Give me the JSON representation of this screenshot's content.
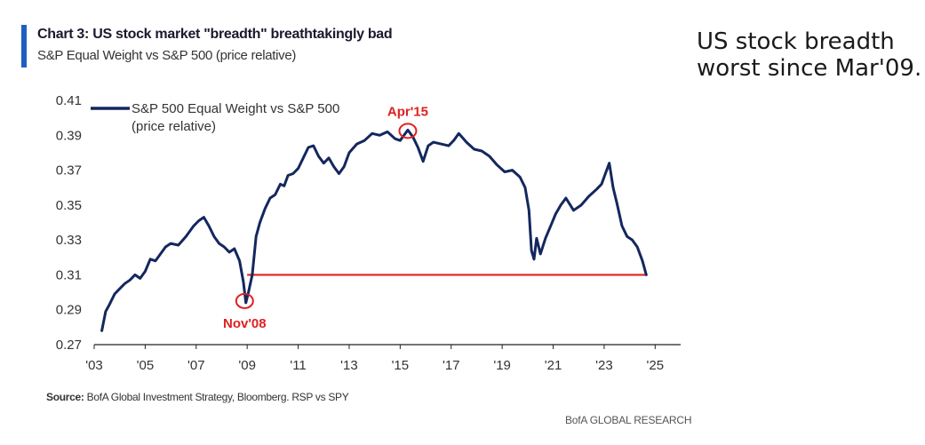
{
  "header": {
    "title": "Chart 3: US stock market \"breadth\" breathtakingly bad",
    "subtitle": "S&P Equal Weight vs S&P 500 (price relative)"
  },
  "side_note": "US stock breadth\nworst since Mar'09.",
  "footer": {
    "source_label": "Source:",
    "source_text": " BofA Global Investment Strategy, Bloomberg. RSP vs SPY",
    "brand": "BofA GLOBAL RESEARCH"
  },
  "colors": {
    "series": "#14275e",
    "annotation": "#e02020",
    "accent": "#1f5fbf",
    "axis": "#222222"
  },
  "chart_data": {
    "type": "line",
    "title": "Chart 3: US stock market \"breadth\" breathtakingly bad",
    "subtitle": "S&P Equal Weight vs S&P 500 (price relative)",
    "xlabel": "",
    "ylabel": "",
    "xlim": [
      2003,
      2026
    ],
    "ylim": [
      0.27,
      0.41
    ],
    "grid": false,
    "legend_position": "top-left",
    "x_ticks": [
      {
        "value": 2003,
        "label": "'03"
      },
      {
        "value": 2005,
        "label": "'05"
      },
      {
        "value": 2007,
        "label": "'07"
      },
      {
        "value": 2009,
        "label": "'09"
      },
      {
        "value": 2011,
        "label": "'11"
      },
      {
        "value": 2013,
        "label": "'13"
      },
      {
        "value": 2015,
        "label": "'15"
      },
      {
        "value": 2017,
        "label": "'17"
      },
      {
        "value": 2019,
        "label": "'19"
      },
      {
        "value": 2021,
        "label": "'21"
      },
      {
        "value": 2023,
        "label": "'23"
      },
      {
        "value": 2025,
        "label": "'25"
      }
    ],
    "y_ticks": [
      {
        "value": 0.27,
        "label": "0.27"
      },
      {
        "value": 0.29,
        "label": "0.29"
      },
      {
        "value": 0.31,
        "label": "0.31"
      },
      {
        "value": 0.33,
        "label": "0.33"
      },
      {
        "value": 0.35,
        "label": "0.35"
      },
      {
        "value": 0.37,
        "label": "0.37"
      },
      {
        "value": 0.39,
        "label": "0.39"
      },
      {
        "value": 0.41,
        "label": "0.41"
      }
    ],
    "series": [
      {
        "name": "S&P 500 Equal Weight vs S&P 500 (price relative)",
        "legend_lines": [
          "S&P 500 Equal Weight vs S&P 500",
          "(price relative)"
        ],
        "x": [
          2003.3,
          2003.45,
          2003.6,
          2003.8,
          2004.0,
          2004.2,
          2004.4,
          2004.6,
          2004.8,
          2005.0,
          2005.2,
          2005.4,
          2005.6,
          2005.8,
          2006.0,
          2006.3,
          2006.6,
          2006.9,
          2007.1,
          2007.3,
          2007.5,
          2007.7,
          2007.9,
          2008.1,
          2008.3,
          2008.5,
          2008.7,
          2008.85,
          2008.95,
          2009.05,
          2009.2,
          2009.35,
          2009.5,
          2009.7,
          2009.9,
          2010.1,
          2010.3,
          2010.45,
          2010.6,
          2010.8,
          2011.0,
          2011.2,
          2011.4,
          2011.6,
          2011.8,
          2012.0,
          2012.2,
          2012.4,
          2012.6,
          2012.8,
          2013.0,
          2013.3,
          2013.6,
          2013.9,
          2014.2,
          2014.5,
          2014.8,
          2015.0,
          2015.3,
          2015.5,
          2015.7,
          2015.9,
          2016.1,
          2016.3,
          2016.6,
          2016.9,
          2017.1,
          2017.3,
          2017.6,
          2017.9,
          2018.2,
          2018.5,
          2018.8,
          2019.1,
          2019.4,
          2019.7,
          2019.9,
          2020.05,
          2020.15,
          2020.25,
          2020.35,
          2020.5,
          2020.7,
          2020.9,
          2021.1,
          2021.3,
          2021.5,
          2021.8,
          2022.1,
          2022.4,
          2022.7,
          2022.9,
          2023.05,
          2023.2,
          2023.35,
          2023.5,
          2023.7,
          2023.9,
          2024.1,
          2024.3,
          2024.5,
          2024.65
        ],
        "values": [
          0.278,
          0.289,
          0.293,
          0.299,
          0.302,
          0.305,
          0.307,
          0.31,
          0.308,
          0.312,
          0.319,
          0.318,
          0.322,
          0.326,
          0.328,
          0.327,
          0.332,
          0.338,
          0.341,
          0.343,
          0.338,
          0.332,
          0.328,
          0.326,
          0.323,
          0.325,
          0.318,
          0.306,
          0.294,
          0.3,
          0.31,
          0.332,
          0.34,
          0.348,
          0.354,
          0.356,
          0.362,
          0.361,
          0.367,
          0.368,
          0.371,
          0.377,
          0.383,
          0.384,
          0.378,
          0.374,
          0.377,
          0.372,
          0.368,
          0.372,
          0.38,
          0.385,
          0.387,
          0.391,
          0.39,
          0.392,
          0.388,
          0.387,
          0.393,
          0.389,
          0.383,
          0.375,
          0.384,
          0.386,
          0.385,
          0.384,
          0.387,
          0.391,
          0.386,
          0.382,
          0.381,
          0.378,
          0.373,
          0.369,
          0.37,
          0.366,
          0.36,
          0.347,
          0.324,
          0.319,
          0.331,
          0.322,
          0.331,
          0.338,
          0.345,
          0.35,
          0.354,
          0.347,
          0.35,
          0.355,
          0.359,
          0.362,
          0.368,
          0.374,
          0.36,
          0.351,
          0.338,
          0.332,
          0.33,
          0.326,
          0.318,
          0.31
        ]
      }
    ],
    "reference_line": {
      "y": 0.31,
      "x_start": 2009.0,
      "x_end": 2024.65
    },
    "annotations": [
      {
        "label": "Nov'08",
        "x": 2008.9,
        "y": 0.295,
        "label_position": "below"
      },
      {
        "label": "Apr'15",
        "x": 2015.3,
        "y": 0.3925,
        "label_position": "above"
      }
    ]
  }
}
